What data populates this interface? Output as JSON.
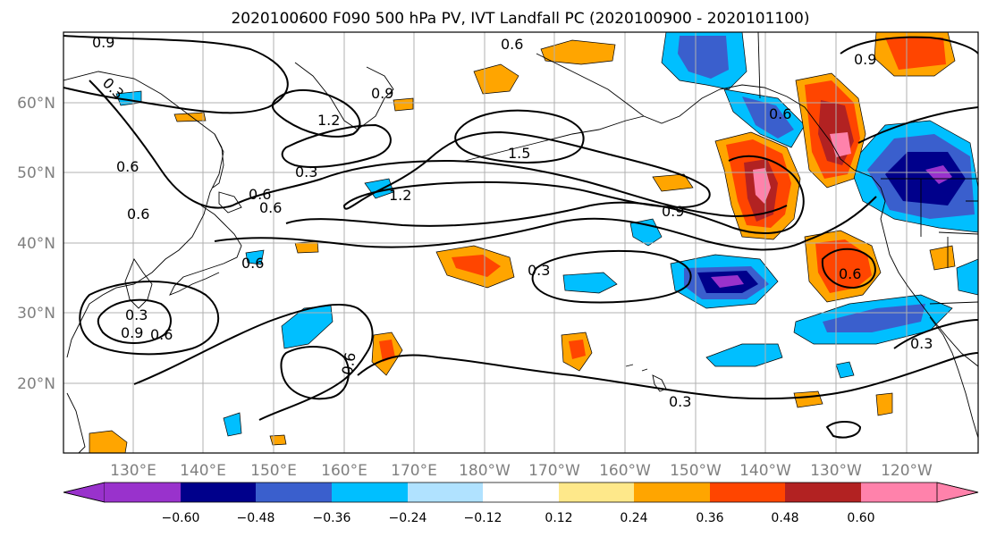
{
  "title": "2020100600 F090 500 hPa PV, IVT Landfall PC (2020100900 - 2020101100)",
  "map": {
    "lon_labels": [
      "130°E",
      "140°E",
      "150°E",
      "160°E",
      "170°E",
      "180°W",
      "170°W",
      "160°W",
      "150°W",
      "140°W",
      "130°W",
      "120°W"
    ],
    "lat_labels": [
      "60°N",
      "50°N",
      "40°N",
      "30°N",
      "20°N"
    ],
    "gridlines": true
  },
  "colorbar": {
    "ticks": [
      "−0.60",
      "−0.48",
      "−0.36",
      "−0.24",
      "−0.12",
      "0.12",
      "0.24",
      "0.36",
      "0.48",
      "0.60"
    ],
    "colors": [
      "#9932cc",
      "#00008b",
      "#3a5fcd",
      "#00bfff",
      "#b0e2ff",
      "#ffffff",
      "#fee88a",
      "#ffa500",
      "#ff4500",
      "#b22222",
      "#ff82ab",
      "#ff82ab"
    ],
    "extend": "both"
  },
  "contour_labels": [
    "0.9",
    "0.3",
    "0.6",
    "1.2",
    "0.3",
    "0.6",
    "0.6",
    "0.6",
    "1.2",
    "0.6",
    "0.9",
    "1.5",
    "0.9",
    "0.3",
    "0.6",
    "0.3",
    "0.6",
    "0.3",
    "0.9",
    "0.6",
    "0.6",
    "0.3",
    "0.6",
    "0.9"
  ],
  "colors": {
    "contour": "#000000",
    "coast": "#000000",
    "grid": "#b0b0b0"
  }
}
